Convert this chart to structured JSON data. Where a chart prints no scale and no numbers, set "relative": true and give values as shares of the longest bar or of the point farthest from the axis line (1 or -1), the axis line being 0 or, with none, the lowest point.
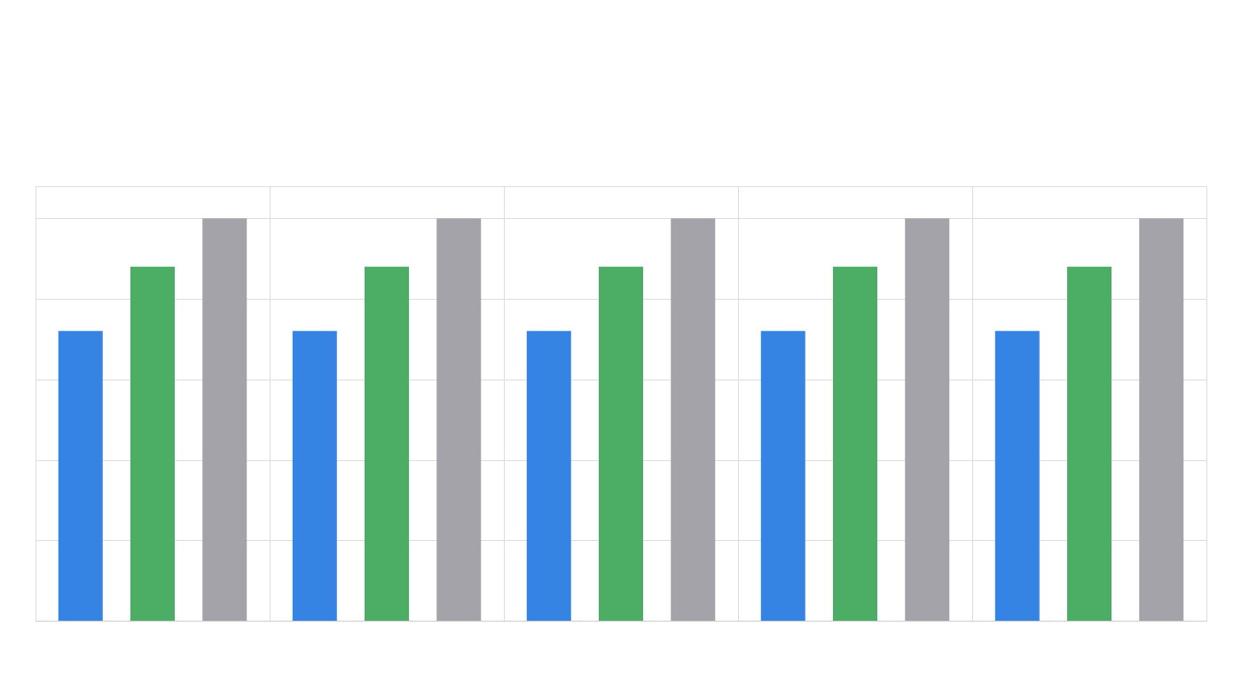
{
  "chart_data": {
    "type": "bar",
    "relative": true,
    "categories": [
      null,
      null,
      null,
      null,
      null
    ],
    "series": [
      {
        "color": "#3584e4",
        "values": [
          0.72,
          0.72,
          0.72,
          0.72,
          0.72
        ]
      },
      {
        "color": "#4cad64",
        "values": [
          0.88,
          0.88,
          0.88,
          0.88,
          0.88
        ]
      },
      {
        "color": "#a4a3a9",
        "values": [
          1,
          1,
          1,
          1,
          1
        ]
      }
    ],
    "grid": true,
    "legend": false
  }
}
